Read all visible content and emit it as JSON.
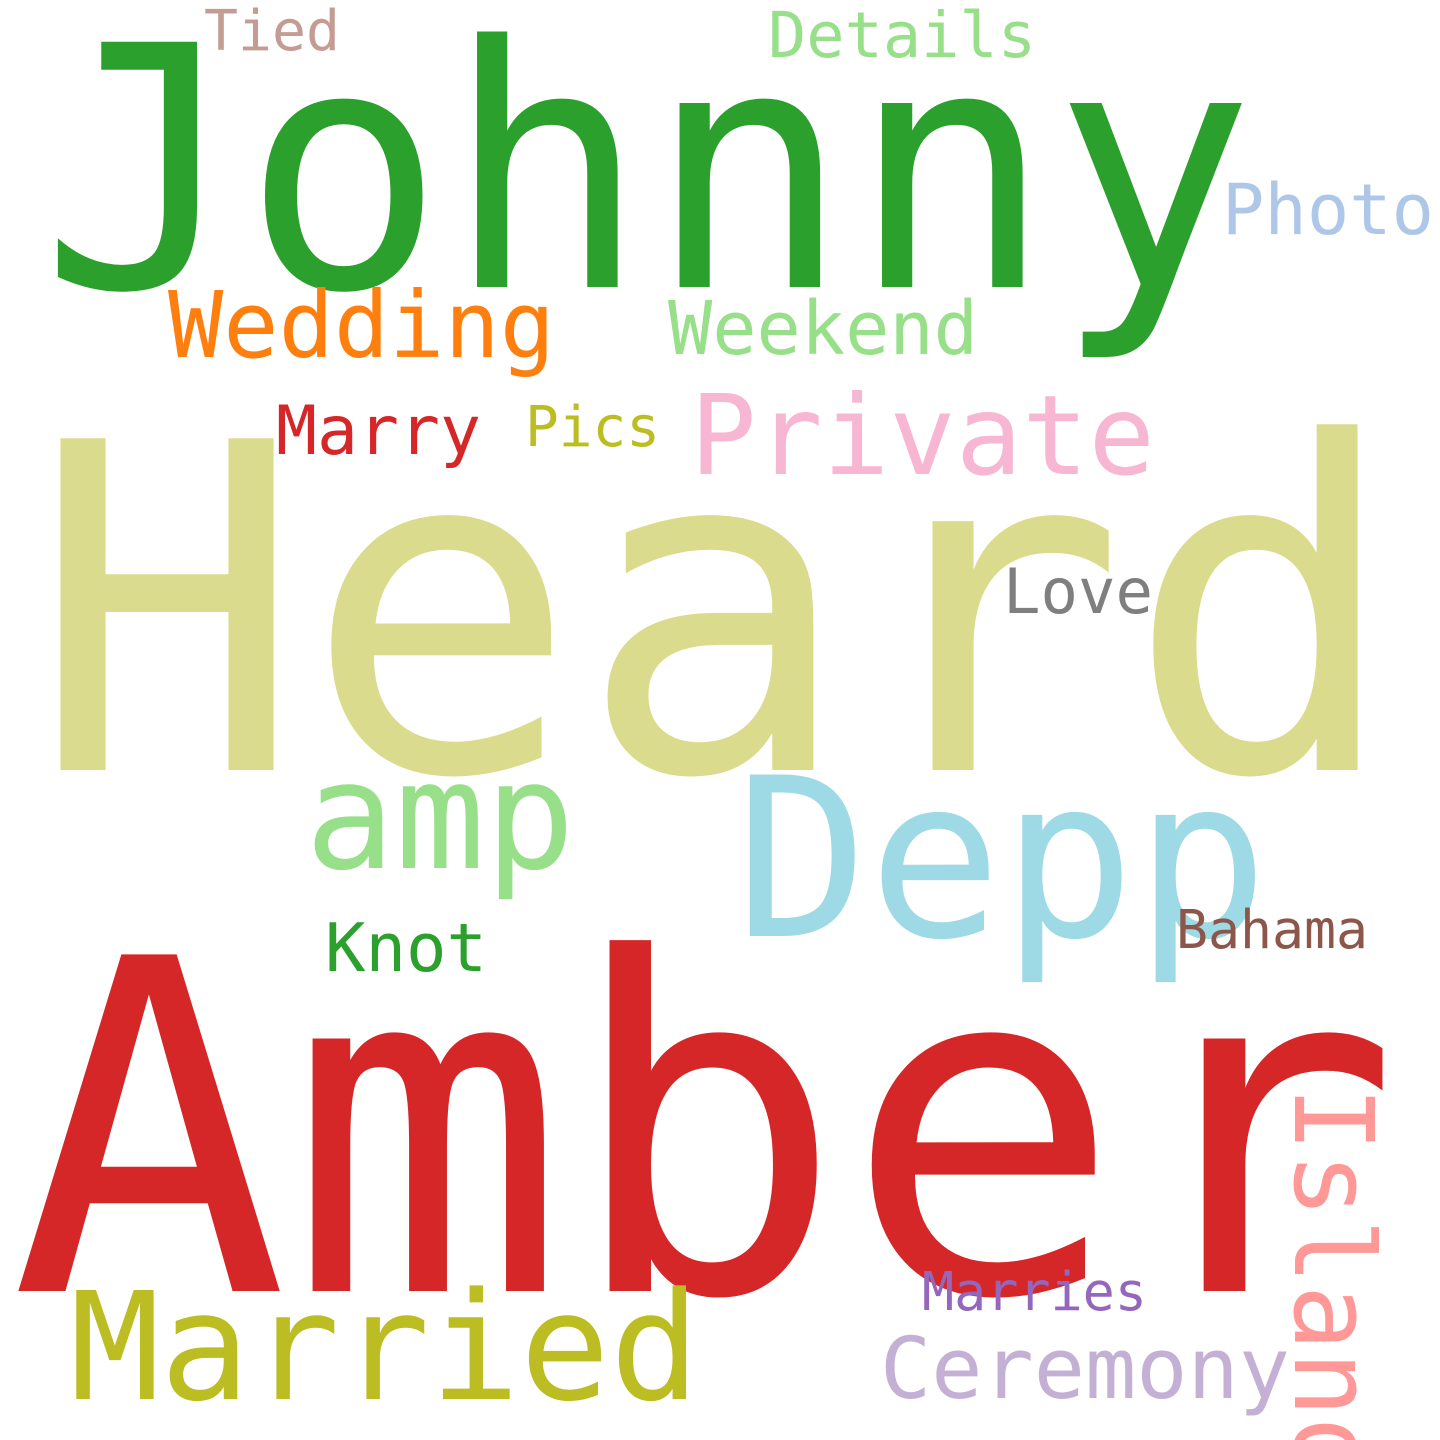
{
  "words": [
    {
      "id": "johnny",
      "text": "Johnny",
      "color": "#2ca02c"
    },
    {
      "id": "heard",
      "text": "Heard",
      "color": "#dbdb8d"
    },
    {
      "id": "amber",
      "text": "Amber",
      "color": "#d62728"
    },
    {
      "id": "depp",
      "text": "Depp",
      "color": "#9edae5"
    },
    {
      "id": "amp",
      "text": "amp",
      "color": "#98df8a"
    },
    {
      "id": "married",
      "text": "Married",
      "color": "#bcbd22"
    },
    {
      "id": "private",
      "text": "Private",
      "color": "#f7b6d2"
    },
    {
      "id": "wedding",
      "text": "Wedding",
      "color": "#ff7f0e"
    },
    {
      "id": "weekend",
      "text": "Weekend",
      "color": "#98df8a"
    },
    {
      "id": "ceremony",
      "text": "Ceremony",
      "color": "#c5b0d5"
    },
    {
      "id": "island",
      "text": "Island",
      "color": "#ff9896"
    },
    {
      "id": "photo",
      "text": "Photo",
      "color": "#aec7e8"
    },
    {
      "id": "details",
      "text": "Details",
      "color": "#98df8a"
    },
    {
      "id": "tied",
      "text": "Tied",
      "color": "#c49c94"
    },
    {
      "id": "marry",
      "text": "Marry",
      "color": "#d62728"
    },
    {
      "id": "pics",
      "text": "Pics",
      "color": "#bcbd22"
    },
    {
      "id": "love",
      "text": "Love",
      "color": "#7f7f7f"
    },
    {
      "id": "knot",
      "text": "Knot",
      "color": "#2ca02c"
    },
    {
      "id": "bahama",
      "text": "Bahama",
      "color": "#8c564b"
    },
    {
      "id": "marries",
      "text": "Marries",
      "color": "#9467bd"
    }
  ]
}
